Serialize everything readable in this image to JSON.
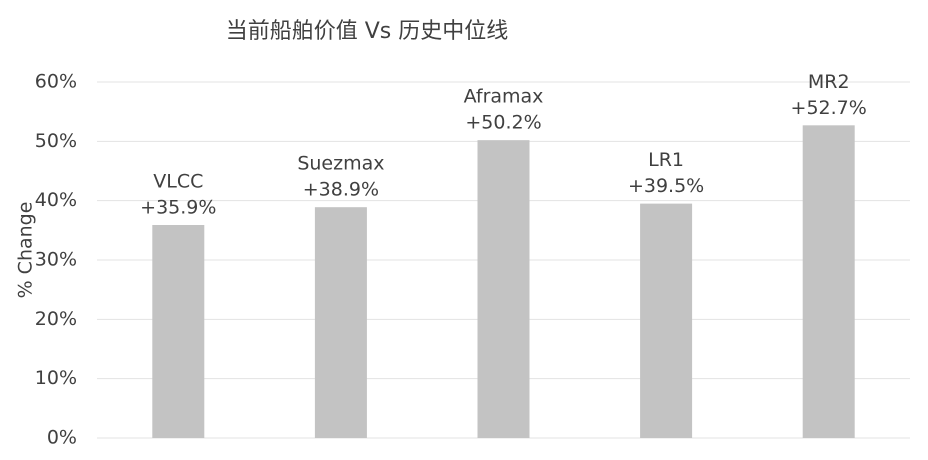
{
  "chart_data": {
    "type": "bar",
    "title": "当前船舶价值 Vs 历史中位线",
    "y_label": "% Change",
    "categories": [
      "VLCC",
      "Suezmax",
      "Aframax",
      "LR1",
      "MR2"
    ],
    "values": [
      35.9,
      38.9,
      50.2,
      39.5,
      52.7
    ],
    "value_labels": [
      "+35.9%",
      "+38.9%",
      "+50.2%",
      "+39.5%",
      "+52.7%"
    ],
    "color": "#c3c3c3",
    "ylim": [
      0,
      60
    ],
    "yticks": [
      {
        "value": 0,
        "label": "0%"
      },
      {
        "value": 10,
        "label": "10%"
      },
      {
        "value": 20,
        "label": "20%"
      },
      {
        "value": 30,
        "label": "30%"
      },
      {
        "value": 40,
        "label": "40%"
      },
      {
        "value": 50,
        "label": "50%"
      },
      {
        "value": 60,
        "label": "60%"
      }
    ],
    "grid": true
  }
}
